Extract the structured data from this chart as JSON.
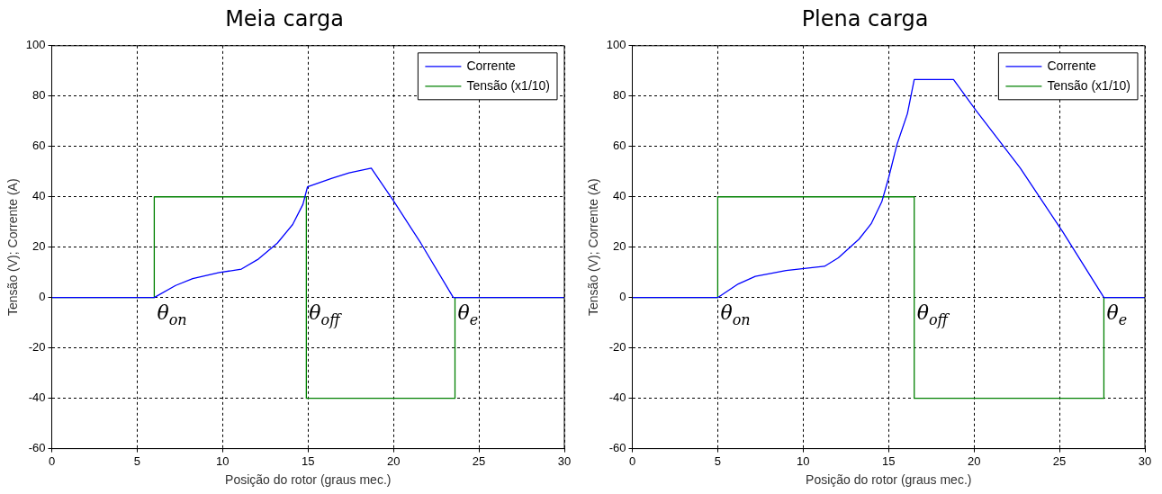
{
  "chart_data": [
    {
      "type": "line",
      "title": "Meia carga",
      "xlabel": "Posição do rotor (graus mec.)",
      "ylabel": "Tensão (V); Corrente (A)",
      "xlim": [
        0,
        30
      ],
      "xticks": [
        0,
        5,
        10,
        15,
        20,
        25,
        30
      ],
      "ylim": [
        -60,
        100
      ],
      "yticks": [
        -60,
        -40,
        -20,
        0,
        20,
        40,
        60,
        80,
        100
      ],
      "grid": true,
      "legend": "top right",
      "line_style": "solid",
      "marker": "none",
      "series": [
        {
          "name": "Corrente",
          "color": "#0000ff",
          "x": [
            0,
            6.0,
            7.25,
            8.25,
            9.8,
            11.1,
            12.1,
            13.2,
            14.1,
            14.7,
            14.97,
            16.4,
            17.4,
            18.7,
            20,
            21.6,
            23.5,
            30
          ],
          "values": [
            0,
            0,
            4.8,
            7.5,
            9.9,
            11.3,
            15.3,
            21.6,
            29,
            37,
            44,
            47.4,
            49.5,
            51.4,
            38.4,
            21.6,
            0,
            0
          ]
        },
        {
          "name": "Tensão (x1/10)",
          "color": "#008000",
          "x": [
            0,
            6,
            6,
            14.9,
            14.9,
            23.6,
            23.6,
            30
          ],
          "values": [
            0,
            0,
            40,
            40,
            -40,
            -40,
            0,
            0
          ]
        }
      ],
      "annotations": [
        {
          "text": "θ$_{on}$",
          "x": 6,
          "y": 0
        },
        {
          "text": "θ$_{off}$",
          "x": 14.9,
          "y": 0
        },
        {
          "text": "θ$_{e}$",
          "x": 23.6,
          "y": 0
        }
      ]
    },
    {
      "type": "line",
      "title": "Plena carga",
      "xlabel": "Posição do rotor (graus mec.)",
      "ylabel": "Tensão (V); Corrente (A)",
      "xlim": [
        0,
        30
      ],
      "xticks": [
        0,
        5,
        10,
        15,
        20,
        25,
        30
      ],
      "ylim": [
        -60,
        100
      ],
      "yticks": [
        -60,
        -40,
        -20,
        0,
        20,
        40,
        60,
        80,
        100
      ],
      "grid": true,
      "legend": "top right",
      "line_style": "solid",
      "marker": "none",
      "series": [
        {
          "name": "Corrente",
          "color": "#0000ff",
          "x": [
            0,
            5,
            6.2,
            7.2,
            9.0,
            11.25,
            12.06,
            13.27,
            13.98,
            14.6,
            15.0,
            15.5,
            16.1,
            16.5,
            18.8,
            20.1,
            22.7,
            25.2,
            27.6,
            30
          ],
          "values": [
            0,
            0,
            5.4,
            8.4,
            10.7,
            12.4,
            15.8,
            23.2,
            29.3,
            38,
            47.5,
            61,
            73,
            86.6,
            86.6,
            74.4,
            51.5,
            26,
            0,
            0
          ]
        },
        {
          "name": "Tensão (x1/10)",
          "color": "#008000",
          "x": [
            0,
            5,
            5,
            16.5,
            16.5,
            27.6,
            27.6,
            30
          ],
          "values": [
            0,
            0,
            40,
            40,
            -40,
            -40,
            0,
            0
          ]
        }
      ],
      "annotations": [
        {
          "text": "θ$_{on}$",
          "x": 5,
          "y": 0
        },
        {
          "text": "θ$_{off}$",
          "x": 16.5,
          "y": 0
        },
        {
          "text": "θ$_{e}$",
          "x": 27.6,
          "y": 0
        }
      ]
    }
  ]
}
